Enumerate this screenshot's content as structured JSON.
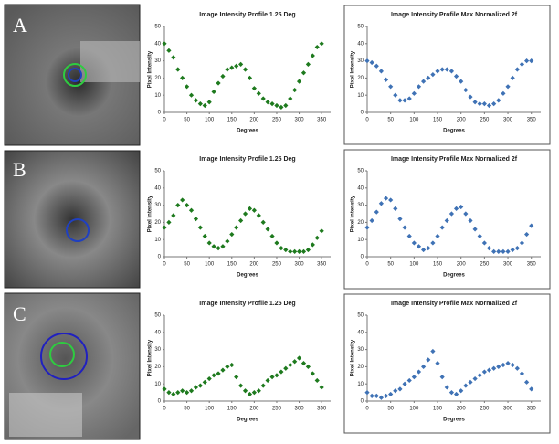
{
  "panel_labels": [
    "A",
    "B",
    "C"
  ],
  "chart_data": [
    {
      "type": "scatter",
      "title": "Image Intensity Profile 1.25 Deg",
      "xlabel": "Degrees",
      "ylabel": "Pixel Intensity",
      "color": "#1e7a1e",
      "x": [
        0,
        10,
        20,
        30,
        40,
        50,
        60,
        70,
        80,
        90,
        100,
        110,
        120,
        130,
        140,
        150,
        160,
        170,
        180,
        190,
        200,
        210,
        220,
        230,
        240,
        250,
        260,
        270,
        280,
        290,
        300,
        310,
        320,
        330,
        340,
        350
      ],
      "values": [
        40,
        36,
        32,
        25,
        20,
        15,
        10,
        7,
        5,
        4,
        6,
        12,
        17,
        21,
        25,
        26,
        27,
        28,
        25,
        20,
        14,
        11,
        8,
        6,
        5,
        4,
        3,
        4,
        8,
        13,
        18,
        23,
        28,
        33,
        38,
        40
      ],
      "xlim": [
        0,
        370
      ],
      "xticks": [
        0,
        50,
        100,
        150,
        200,
        250,
        300,
        350
      ],
      "ylim": [
        0,
        50
      ],
      "yticks": [
        0,
        10,
        20,
        30,
        40,
        50
      ]
    },
    {
      "type": "scatter",
      "title": "Image Intensity Profile Max Normalized 2f",
      "xlabel": "Degrees",
      "ylabel": "Pixel Intensity",
      "color": "#3f72b5",
      "x": [
        0,
        10,
        20,
        30,
        40,
        50,
        60,
        70,
        80,
        90,
        100,
        110,
        120,
        130,
        140,
        150,
        160,
        170,
        180,
        190,
        200,
        210,
        220,
        230,
        240,
        250,
        260,
        270,
        280,
        290,
        300,
        310,
        320,
        330,
        340,
        350
      ],
      "values": [
        30,
        29,
        27,
        24,
        19,
        15,
        10,
        7,
        7,
        8,
        11,
        15,
        18,
        20,
        22,
        24,
        25,
        25,
        24,
        21,
        18,
        13,
        9,
        6,
        5,
        5,
        4,
        5,
        7,
        11,
        15,
        20,
        25,
        28,
        30,
        30
      ],
      "xlim": [
        0,
        370
      ],
      "xticks": [
        0,
        50,
        100,
        150,
        200,
        250,
        300,
        350
      ],
      "ylim": [
        0,
        50
      ],
      "yticks": [
        0,
        10,
        20,
        30,
        40,
        50
      ]
    },
    {
      "type": "scatter",
      "title": "Image Intensity Profile 1.25 Deg",
      "xlabel": "Degrees",
      "ylabel": "Pixel Intensity",
      "color": "#1e7a1e",
      "x": [
        0,
        10,
        20,
        30,
        40,
        50,
        60,
        70,
        80,
        90,
        100,
        110,
        120,
        130,
        140,
        150,
        160,
        170,
        180,
        190,
        200,
        210,
        220,
        230,
        240,
        250,
        260,
        270,
        280,
        290,
        300,
        310,
        320,
        330,
        340,
        350
      ],
      "values": [
        17,
        20,
        24,
        30,
        33,
        30,
        27,
        22,
        17,
        12,
        8,
        6,
        5,
        6,
        9,
        13,
        17,
        21,
        25,
        28,
        27,
        24,
        20,
        16,
        12,
        8,
        5,
        4,
        3,
        3,
        3,
        3,
        4,
        7,
        11,
        15
      ],
      "xlim": [
        0,
        370
      ],
      "xticks": [
        0,
        50,
        100,
        150,
        200,
        250,
        300,
        350
      ],
      "ylim": [
        0,
        50
      ],
      "yticks": [
        0,
        10,
        20,
        30,
        40,
        50
      ]
    },
    {
      "type": "scatter",
      "title": "Image Intensity Profile Max Normalized 2f",
      "xlabel": "Degrees",
      "ylabel": "Pixel Intensity",
      "color": "#3f72b5",
      "x": [
        0,
        10,
        20,
        30,
        40,
        50,
        60,
        70,
        80,
        90,
        100,
        110,
        120,
        130,
        140,
        150,
        160,
        170,
        180,
        190,
        200,
        210,
        220,
        230,
        240,
        250,
        260,
        270,
        280,
        290,
        300,
        310,
        320,
        330,
        340,
        350
      ],
      "values": [
        17,
        21,
        26,
        31,
        34,
        33,
        28,
        22,
        17,
        12,
        8,
        6,
        4,
        5,
        8,
        12,
        17,
        21,
        25,
        28,
        29,
        25,
        21,
        16,
        12,
        8,
        5,
        3,
        3,
        3,
        3,
        4,
        5,
        8,
        13,
        18
      ],
      "xlim": [
        0,
        370
      ],
      "xticks": [
        0,
        50,
        100,
        150,
        200,
        250,
        300,
        350
      ],
      "ylim": [
        0,
        50
      ],
      "yticks": [
        0,
        10,
        20,
        30,
        40,
        50
      ]
    },
    {
      "type": "scatter",
      "title": "Image Intensity Profile 1.25 Deg",
      "xlabel": "Degrees",
      "ylabel": "Pixel Intensity",
      "color": "#1e7a1e",
      "x": [
        0,
        10,
        20,
        30,
        40,
        50,
        60,
        70,
        80,
        90,
        100,
        110,
        120,
        130,
        140,
        150,
        160,
        170,
        180,
        190,
        200,
        210,
        220,
        230,
        240,
        250,
        260,
        270,
        280,
        290,
        300,
        310,
        320,
        330,
        340,
        350
      ],
      "values": [
        7,
        5,
        4,
        5,
        6,
        5,
        6,
        8,
        9,
        11,
        13,
        15,
        16,
        18,
        20,
        21,
        14,
        9,
        6,
        4,
        5,
        6,
        9,
        12,
        14,
        15,
        17,
        19,
        21,
        23,
        25,
        22,
        20,
        16,
        12,
        8
      ],
      "xlim": [
        0,
        370
      ],
      "xticks": [
        0,
        50,
        100,
        150,
        200,
        250,
        300,
        350
      ],
      "ylim": [
        0,
        50
      ],
      "yticks": [
        0,
        10,
        20,
        30,
        40,
        50
      ]
    },
    {
      "type": "scatter",
      "title": "Image Intensity Profile Max Normalized 2f",
      "xlabel": "Degrees",
      "ylabel": "Pixel Intensity",
      "color": "#3f72b5",
      "x": [
        0,
        10,
        20,
        30,
        40,
        50,
        60,
        70,
        80,
        90,
        100,
        110,
        120,
        130,
        140,
        150,
        160,
        170,
        180,
        190,
        200,
        210,
        220,
        230,
        240,
        250,
        260,
        270,
        280,
        290,
        300,
        310,
        320,
        330,
        340,
        350
      ],
      "values": [
        5,
        3,
        3,
        2,
        3,
        4,
        6,
        7,
        10,
        12,
        14,
        17,
        20,
        24,
        29,
        22,
        14,
        8,
        5,
        4,
        6,
        9,
        11,
        13,
        15,
        17,
        18,
        19,
        20,
        21,
        22,
        21,
        19,
        16,
        11,
        7
      ],
      "xlim": [
        0,
        370
      ],
      "xticks": [
        0,
        50,
        100,
        150,
        200,
        250,
        300,
        350
      ],
      "ylim": [
        0,
        50
      ],
      "yticks": [
        0,
        10,
        20,
        30,
        40,
        50
      ]
    }
  ]
}
